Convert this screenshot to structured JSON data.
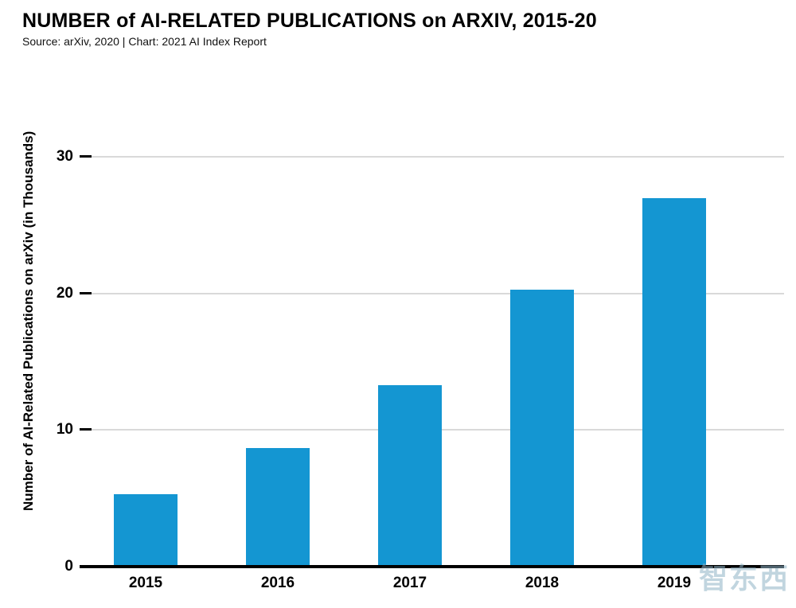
{
  "header": {
    "title": "NUMBER of AI-RELATED PUBLICATIONS on ARXIV, 2015-20",
    "subtitle": "Source: arXiv, 2020 | Chart: 2021 AI Index Report"
  },
  "chart_data": {
    "type": "bar",
    "categories": [
      "2015",
      "2016",
      "2017",
      "2018",
      "2019"
    ],
    "values": [
      5.3,
      8.7,
      13.3,
      20.3,
      27.0
    ],
    "title": "NUMBER of AI-RELATED PUBLICATIONS on ARXIV, 2015-20",
    "subtitle": "Source: arXiv, 2020 | Chart: 2021 AI Index Report",
    "xlabel": "",
    "ylabel": "Number of AI-Related Publications on arXiv (in Thousands)",
    "ylim": [
      0,
      36
    ],
    "yticks": [
      0,
      10,
      20,
      30
    ],
    "bar_color": "#1496d2",
    "gridline_color": "#d9d9d9",
    "grid": "horizontal",
    "legend": "none"
  },
  "watermark": {
    "text": "智东西"
  }
}
